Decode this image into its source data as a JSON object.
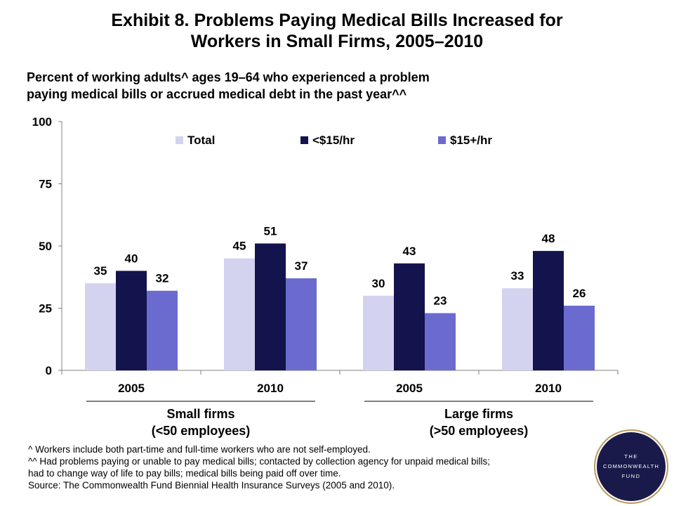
{
  "title_lines": [
    "Exhibit 8. Problems Paying Medical Bills Increased for",
    "Workers in Small Firms, 2005–2010"
  ],
  "subtitle_lines": [
    "Percent of working adults^ ages 19–64 who experienced a problem",
    "paying medical bills or accrued medical debt in the past year^^"
  ],
  "chart_data": {
    "type": "bar",
    "categories": [
      "2005",
      "2010",
      "2005",
      "2010"
    ],
    "groups": [
      {
        "label_lines": [
          "Small firms",
          "(<50 employees)"
        ]
      },
      {
        "label_lines": [
          "Large firms",
          "(>50 employees)"
        ]
      }
    ],
    "series": [
      {
        "name": "Total",
        "color": "#d3d3f0",
        "values": [
          35,
          45,
          30,
          33
        ]
      },
      {
        "name": "<$15/hr",
        "color": "#13134d",
        "values": [
          40,
          51,
          43,
          48
        ]
      },
      {
        "name": "$15+/hr",
        "color": "#6b6bcf",
        "values": [
          32,
          37,
          23,
          26
        ]
      }
    ],
    "yticks": [
      "0",
      "25",
      "50",
      "75",
      "100"
    ],
    "ylim": [
      0,
      100
    ],
    "grid": false,
    "legend_position": "top"
  },
  "footnotes": [
    "^ Workers include both part-time and full-time workers who are not self-employed.",
    "^^ Had problems paying or unable to pay medical bills; contacted by collection agency for unpaid medical bills;",
    "had to change way of life to pay bills; medical bills being paid off over time.",
    "Source: The Commonwealth Fund Biennial Health Insurance Surveys (2005 and 2010)."
  ],
  "logo": {
    "lines": [
      "THE",
      "COMMONWEALTH",
      "FUND"
    ],
    "color": "#1a1a4a",
    "ring": "#b89b5e"
  }
}
